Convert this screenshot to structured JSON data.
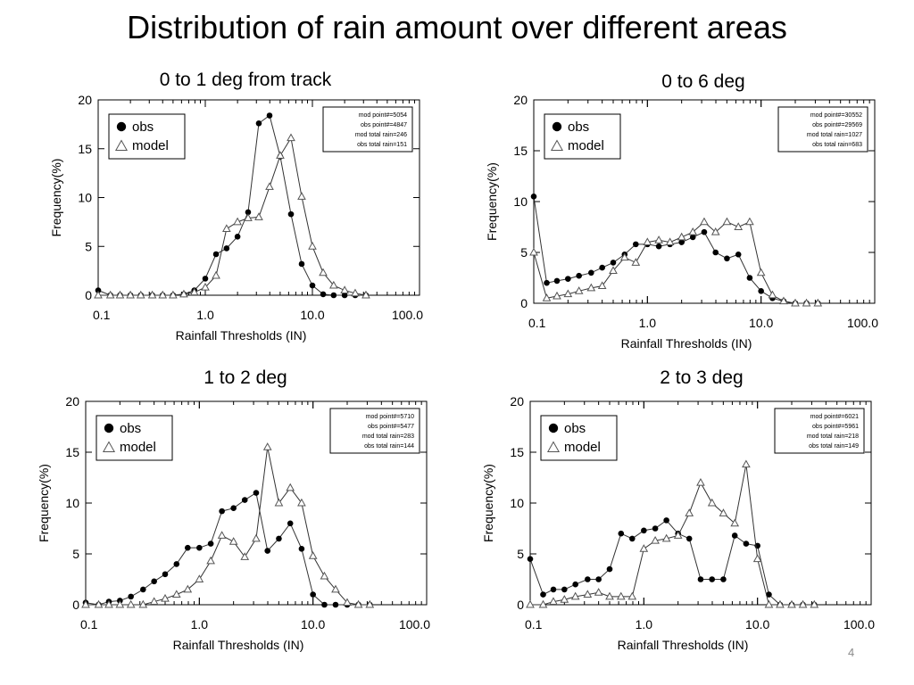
{
  "slide": {
    "title": "Distribution of rain amount over different areas",
    "page_number": "4"
  },
  "chart_data": [
    {
      "type": "line",
      "title": "0 to 1 deg from track",
      "xlabel": "Rainfall Thresholds (IN)",
      "ylabel": "Frequency(%)",
      "xscale": "log",
      "xlim": [
        0.1,
        100
      ],
      "ylim": [
        0,
        20
      ],
      "x_tick_labels": [
        "0.1",
        "1.0",
        "10.0",
        "100.0"
      ],
      "y_tick_labels": [
        "0",
        "5",
        "10",
        "15",
        "20"
      ],
      "grid": false,
      "legend_position": "top-left",
      "legend": [
        {
          "marker": "filled-circle",
          "label": "obs"
        },
        {
          "marker": "open-triangle",
          "label": "model"
        }
      ],
      "info_box": [
        "mod point#=5054",
        "obs point#=4847",
        "mod total rain=246",
        "obs total rain=151"
      ],
      "series": [
        {
          "name": "obs",
          "marker": "filled-circle",
          "x": [
            0.1,
            0.13,
            0.16,
            0.2,
            0.25,
            0.32,
            0.4,
            0.5,
            0.63,
            0.79,
            1.0,
            1.26,
            1.58,
            2.0,
            2.51,
            3.16,
            3.98,
            5.01,
            6.31,
            7.94,
            10.0,
            12.6,
            15.8,
            20.0,
            25.1,
            31.6
          ],
          "y": [
            0.5,
            0.0,
            0.0,
            0.0,
            0.0,
            0.0,
            0.0,
            0.0,
            0.1,
            0.5,
            1.7,
            4.2,
            4.8,
            6.0,
            8.5,
            17.6,
            18.4,
            14.2,
            8.3,
            3.2,
            1.0,
            0.1,
            0.0,
            0.0,
            0.0,
            0.0
          ]
        },
        {
          "name": "model",
          "marker": "open-triangle",
          "x": [
            0.1,
            0.13,
            0.16,
            0.2,
            0.25,
            0.32,
            0.4,
            0.5,
            0.63,
            0.79,
            1.0,
            1.26,
            1.58,
            2.0,
            2.51,
            3.16,
            3.98,
            5.01,
            6.31,
            7.94,
            10.0,
            12.6,
            15.8,
            20.0,
            25.1,
            31.6
          ],
          "y": [
            0.0,
            0.0,
            0.0,
            0.0,
            0.0,
            0.0,
            0.0,
            0.0,
            0.1,
            0.3,
            0.8,
            2.0,
            6.8,
            7.5,
            7.9,
            8.0,
            11.1,
            14.3,
            16.1,
            10.1,
            5.0,
            2.3,
            1.0,
            0.5,
            0.2,
            0.0
          ]
        }
      ]
    },
    {
      "type": "line",
      "title": "0 to 6 deg",
      "xlabel": "Rainfall Thresholds (IN)",
      "ylabel": "Frequency(%)",
      "xscale": "log",
      "xlim": [
        0.1,
        100
      ],
      "ylim": [
        0,
        20
      ],
      "x_tick_labels": [
        "0.1",
        "1.0",
        "10.0",
        "100.0"
      ],
      "y_tick_labels": [
        "0",
        "5",
        "10",
        "15",
        "20"
      ],
      "grid": false,
      "legend_position": "top-left",
      "legend": [
        {
          "marker": "filled-circle",
          "label": "obs"
        },
        {
          "marker": "open-triangle",
          "label": "model"
        }
      ],
      "info_box": [
        "mod point#=30552",
        "obs point#=29569",
        "mod total rain=1027",
        "obs total rain=683"
      ],
      "series": [
        {
          "name": "obs",
          "marker": "filled-circle",
          "x": [
            0.1,
            0.13,
            0.16,
            0.2,
            0.25,
            0.32,
            0.4,
            0.5,
            0.63,
            0.79,
            1.0,
            1.26,
            1.58,
            2.0,
            2.51,
            3.16,
            3.98,
            5.01,
            6.31,
            7.94,
            10.0,
            12.6,
            15.8,
            20.0,
            25.1,
            31.6
          ],
          "y": [
            10.5,
            2.0,
            2.2,
            2.4,
            2.7,
            3.0,
            3.5,
            4.0,
            4.8,
            5.8,
            5.8,
            5.6,
            5.8,
            6.0,
            6.5,
            7.0,
            5.0,
            4.4,
            4.8,
            2.5,
            1.2,
            0.5,
            0.2,
            0.0,
            0.0,
            0.0
          ]
        },
        {
          "name": "model",
          "marker": "open-triangle",
          "x": [
            0.1,
            0.13,
            0.16,
            0.2,
            0.25,
            0.32,
            0.4,
            0.5,
            0.63,
            0.79,
            1.0,
            1.26,
            1.58,
            2.0,
            2.51,
            3.16,
            3.98,
            5.01,
            6.31,
            7.94,
            10.0,
            12.6,
            15.8,
            20.0,
            25.1,
            31.6
          ],
          "y": [
            5.0,
            0.5,
            0.7,
            0.9,
            1.2,
            1.5,
            1.7,
            3.2,
            4.5,
            4.0,
            6.0,
            6.2,
            6.0,
            6.5,
            7.0,
            8.0,
            7.0,
            8.0,
            7.5,
            8.0,
            3.0,
            0.8,
            0.2,
            0.0,
            0.0,
            0.0
          ]
        }
      ]
    },
    {
      "type": "line",
      "title": "1 to 2 deg",
      "xlabel": "Rainfall Thresholds (IN)",
      "ylabel": "Frequency(%)",
      "xscale": "log",
      "xlim": [
        0.1,
        100
      ],
      "ylim": [
        0,
        20
      ],
      "x_tick_labels": [
        "0.1",
        "1.0",
        "10.0",
        "100.0"
      ],
      "y_tick_labels": [
        "0",
        "5",
        "10",
        "15",
        "20"
      ],
      "grid": false,
      "legend_position": "top-left",
      "legend": [
        {
          "marker": "filled-circle",
          "label": "obs"
        },
        {
          "marker": "open-triangle",
          "label": "model"
        }
      ],
      "info_box": [
        "mod point#=5710",
        "obs point#=5477",
        "mod total rain=283",
        "obs total rain=144"
      ],
      "series": [
        {
          "name": "obs",
          "marker": "filled-circle",
          "x": [
            0.1,
            0.13,
            0.16,
            0.2,
            0.25,
            0.32,
            0.4,
            0.5,
            0.63,
            0.79,
            1.0,
            1.26,
            1.58,
            2.0,
            2.51,
            3.16,
            3.98,
            5.01,
            6.31,
            7.94,
            10.0,
            12.6,
            15.8,
            20.0,
            25.1,
            31.6
          ],
          "y": [
            0.2,
            0.0,
            0.3,
            0.4,
            0.8,
            1.5,
            2.3,
            3.0,
            4.0,
            5.6,
            5.6,
            6.0,
            9.2,
            9.5,
            10.3,
            11.0,
            5.3,
            6.5,
            8.0,
            5.5,
            1.0,
            0.0,
            0.0,
            0.0,
            0.0,
            0.0
          ]
        },
        {
          "name": "model",
          "marker": "open-triangle",
          "x": [
            0.1,
            0.13,
            0.16,
            0.2,
            0.25,
            0.32,
            0.4,
            0.5,
            0.63,
            0.79,
            1.0,
            1.26,
            1.58,
            2.0,
            2.51,
            3.16,
            3.98,
            5.01,
            6.31,
            7.94,
            10.0,
            12.6,
            15.8,
            20.0,
            25.1,
            31.6
          ],
          "y": [
            0.0,
            0.0,
            0.0,
            0.0,
            0.0,
            0.0,
            0.3,
            0.6,
            1.0,
            1.5,
            2.5,
            4.3,
            6.8,
            6.2,
            4.7,
            6.5,
            15.5,
            10.0,
            11.5,
            10.0,
            4.8,
            2.8,
            1.5,
            0.2,
            0.0,
            0.0
          ]
        }
      ]
    },
    {
      "type": "line",
      "title": "2 to 3 deg",
      "xlabel": "Rainfall Thresholds (IN)",
      "ylabel": "Frequency(%)",
      "xscale": "log",
      "xlim": [
        0.1,
        100
      ],
      "ylim": [
        0,
        20
      ],
      "x_tick_labels": [
        "0.1",
        "1.0",
        "10.0",
        "100.0"
      ],
      "y_tick_labels": [
        "0",
        "5",
        "10",
        "15",
        "20"
      ],
      "grid": false,
      "legend_position": "top-left",
      "legend": [
        {
          "marker": "filled-circle",
          "label": "obs"
        },
        {
          "marker": "open-triangle",
          "label": "model"
        }
      ],
      "info_box": [
        "mod point#=6021",
        "obs point#=5961",
        "mod total rain=218",
        "obs total rain=149"
      ],
      "series": [
        {
          "name": "obs",
          "marker": "filled-circle",
          "x": [
            0.1,
            0.13,
            0.16,
            0.2,
            0.25,
            0.32,
            0.4,
            0.5,
            0.63,
            0.79,
            1.0,
            1.26,
            1.58,
            2.0,
            2.51,
            3.16,
            3.98,
            5.01,
            6.31,
            7.94,
            10.0,
            12.6,
            15.8,
            20.0,
            25.1,
            31.6
          ],
          "y": [
            4.5,
            1.0,
            1.5,
            1.5,
            2.0,
            2.5,
            2.5,
            3.5,
            7.0,
            6.5,
            7.3,
            7.5,
            8.3,
            7.0,
            6.5,
            2.5,
            2.5,
            2.5,
            6.8,
            6.0,
            5.8,
            1.0,
            0.0,
            0.0,
            0.0,
            0.0
          ]
        },
        {
          "name": "model",
          "marker": "open-triangle",
          "x": [
            0.1,
            0.13,
            0.16,
            0.2,
            0.25,
            0.32,
            0.4,
            0.5,
            0.63,
            0.79,
            1.0,
            1.26,
            1.58,
            2.0,
            2.51,
            3.16,
            3.98,
            5.01,
            6.31,
            7.94,
            10.0,
            12.6,
            15.8,
            20.0,
            25.1,
            31.6
          ],
          "y": [
            0.0,
            0.0,
            0.3,
            0.5,
            0.8,
            1.0,
            1.2,
            0.8,
            0.8,
            0.8,
            5.5,
            6.3,
            6.5,
            6.8,
            9.0,
            12.0,
            10.0,
            9.0,
            8.0,
            13.8,
            4.5,
            0.0,
            0.0,
            0.0,
            0.0,
            0.0
          ]
        }
      ]
    }
  ]
}
